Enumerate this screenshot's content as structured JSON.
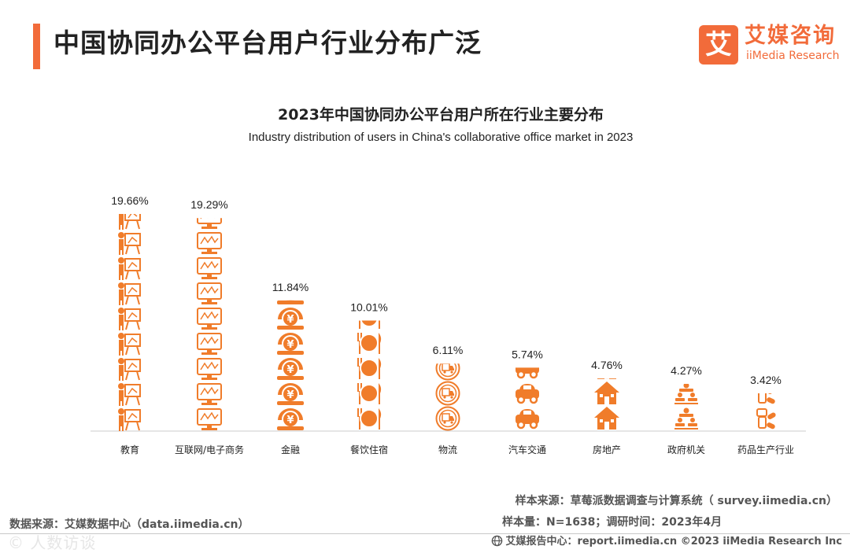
{
  "page": {
    "title": "中国协同办公平台用户行业分布广泛"
  },
  "brand": {
    "logo_mark": "艾",
    "name_cn": "艾媒咨询",
    "name_en": "iiMedia Research",
    "accent_color": "#f26b3a",
    "icon_color": "#f07c2a"
  },
  "chart_data": {
    "type": "bar",
    "title": "2023年中国协同办公平台用户所在行业主要分布",
    "subtitle": "Industry distribution of users in China's collaborative office market in 2023",
    "categories": [
      "教育",
      "互联网/电子商务",
      "金融",
      "餐饮住宿",
      "物流",
      "汽车交通",
      "房地产",
      "政府机关",
      "药品生产行业"
    ],
    "values": [
      19.66,
      19.29,
      11.84,
      10.01,
      6.11,
      5.74,
      4.76,
      4.27,
      3.42
    ],
    "value_labels": [
      "19.66%",
      "19.29%",
      "11.84%",
      "10.01%",
      "6.11%",
      "5.74%",
      "4.76%",
      "4.27%",
      "3.42%"
    ],
    "icons": [
      "teacher-board-icon",
      "computer-monitor-icon",
      "money-coin-icon",
      "dining-plate-icon",
      "delivery-truck-icon",
      "car-icon",
      "house-icon",
      "government-people-icon",
      "medicine-icon"
    ],
    "unit": "%",
    "ylim": [
      0,
      20
    ],
    "xlabel": "",
    "ylabel": "",
    "grid": false
  },
  "footer": {
    "data_source": "数据来源：艾媒数据中心（data.iimedia.cn）",
    "sample_source": "样本来源：草莓派数据调查与计算系统（ survey.iimedia.cn）",
    "sample_info": "样本量：N=1638；调研时间：2023年4月",
    "report_center": "艾媒报告中心：report.iimedia.cn   ©2023  iiMedia Research  Inc",
    "watermark": "©  人数访谈"
  }
}
